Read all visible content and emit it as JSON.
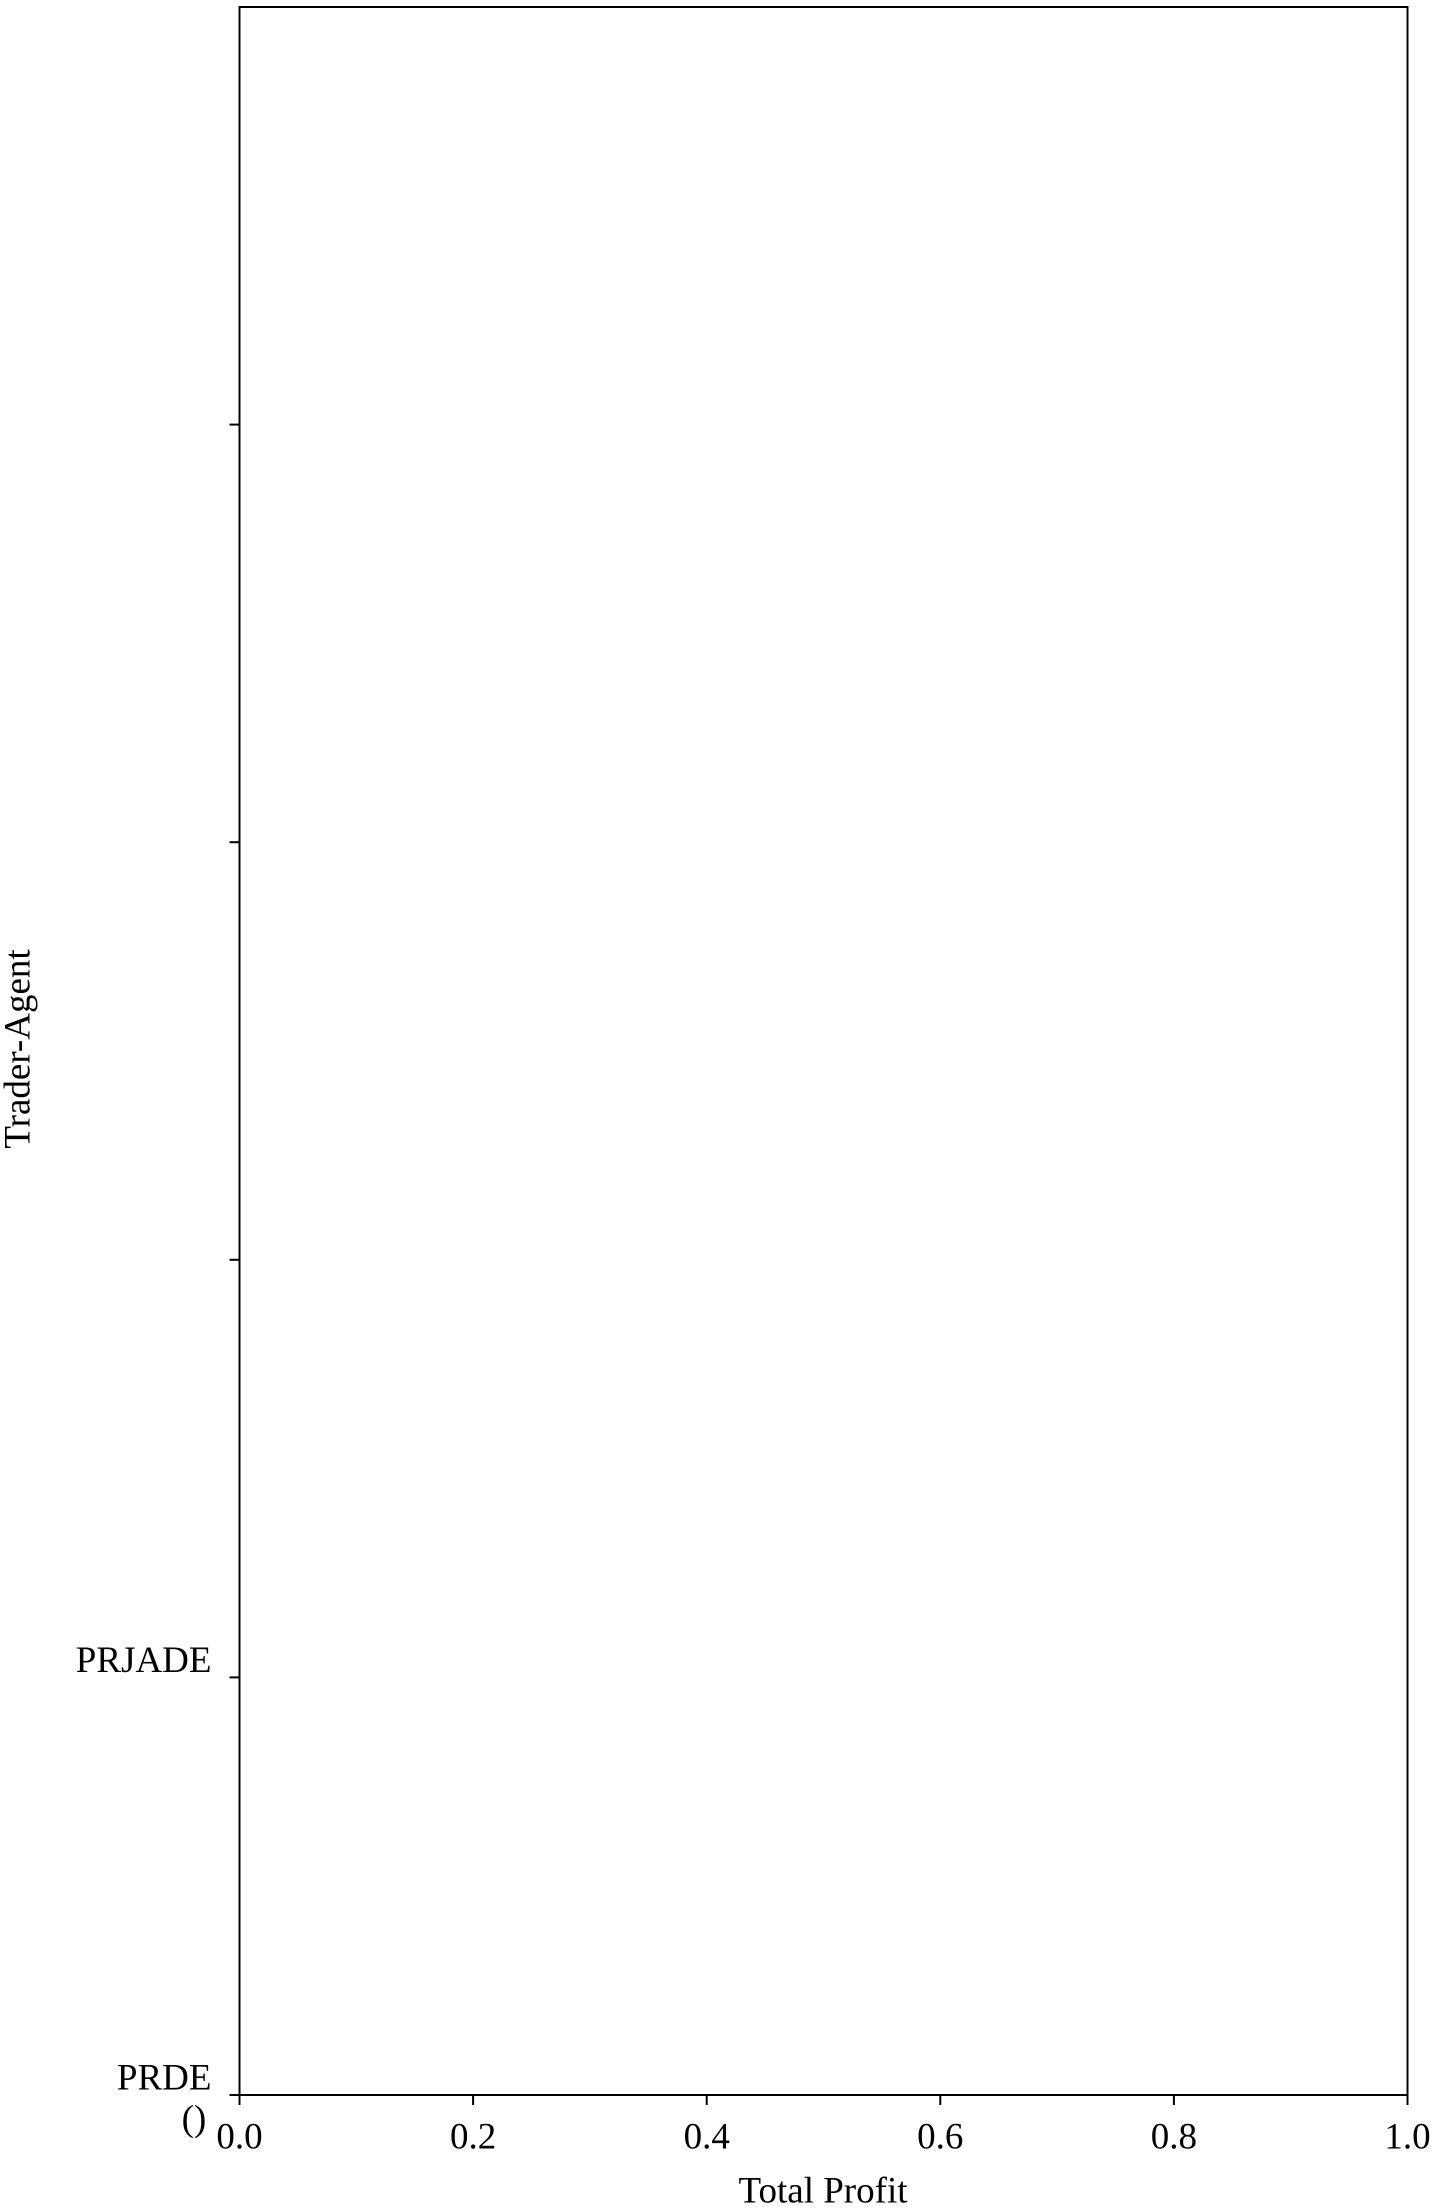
{
  "chart_data": {
    "type": "barh",
    "categories": [
      "PRDE",
      "PRJADE",
      null,
      null,
      null
    ],
    "values": [
      0,
      0,
      0,
      0,
      0
    ],
    "color": "#1f77b4",
    "xlabel": "Total Profit",
    "ylabel": "Trader-Agent",
    "annotation": "()",
    "xlim": [
      0,
      1
    ],
    "xticks": [
      {
        "value": 0,
        "label": "0.0"
      },
      {
        "value": 0.2,
        "label": "0.2"
      },
      {
        "value": 0.4,
        "label": "0.4"
      },
      {
        "value": 0.6,
        "label": "0.6"
      },
      {
        "value": 0.8,
        "label": "0.8"
      },
      {
        "value": 1,
        "label": "1.0"
      }
    ],
    "grid": false
  }
}
